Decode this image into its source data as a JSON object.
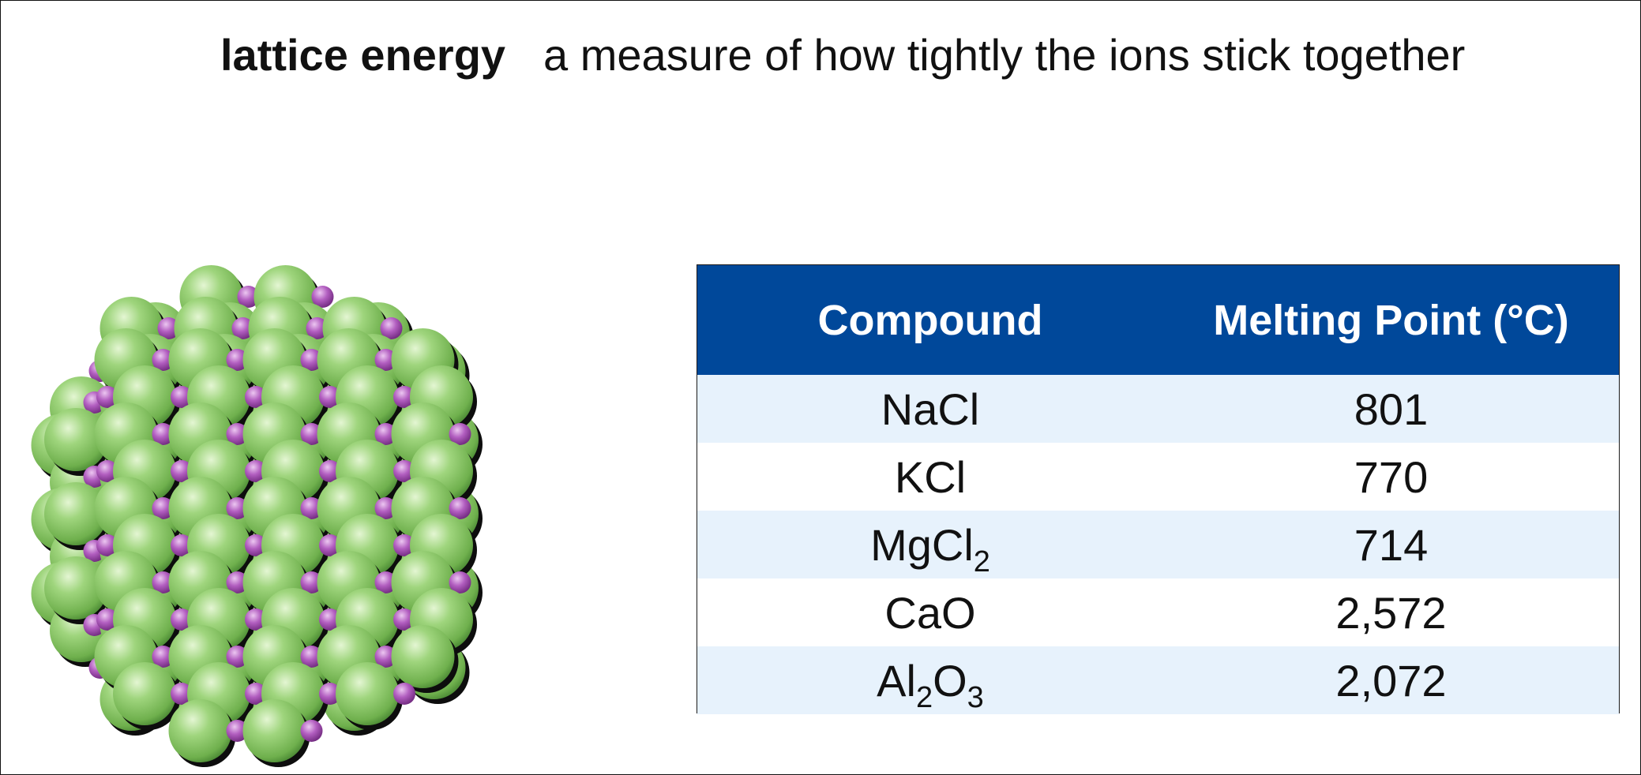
{
  "title": {
    "term": "lattice energy",
    "definition": "a measure of how tightly the ions stick together"
  },
  "illustration": {
    "name": "ionic-crystal-lattice",
    "large_ion_color": "#8ecb6a",
    "small_ion_color": "#a04fb0"
  },
  "colors": {
    "header_bg": "#00489a",
    "row_band": "#e7f2fc"
  },
  "table": {
    "headers": [
      "Compound",
      "Melting Point (°C)"
    ],
    "rows": [
      {
        "compound": [
          "NaCl"
        ],
        "melting_point": "801"
      },
      {
        "compound": [
          "KCl"
        ],
        "melting_point": "770"
      },
      {
        "compound": [
          "MgCl",
          "2"
        ],
        "melting_point": "714"
      },
      {
        "compound": [
          "CaO"
        ],
        "melting_point": "2,572"
      },
      {
        "compound": [
          "Al",
          "2",
          "O",
          "3"
        ],
        "melting_point": "2,072"
      }
    ]
  }
}
